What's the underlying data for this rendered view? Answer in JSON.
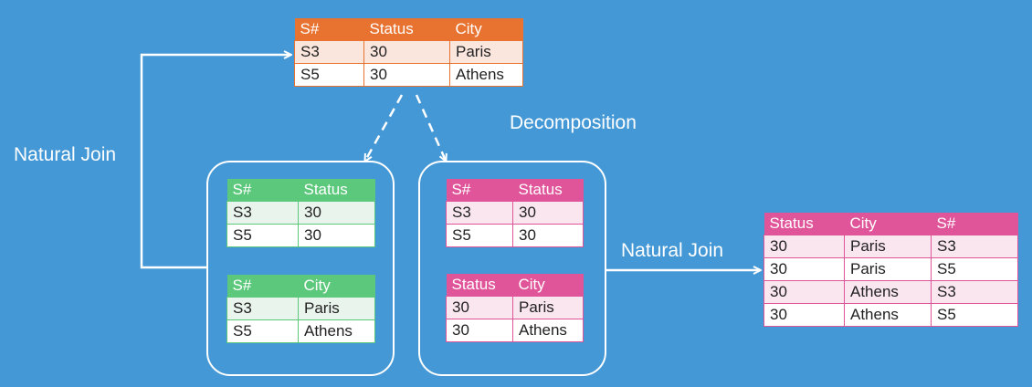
{
  "colors": {
    "background": "#4498d6",
    "orange_header": "#e8722f",
    "orange_row_alt": "#fbe6de",
    "green_header": "#5cc87c",
    "green_row_alt": "#e9f4ec",
    "pink_header": "#e0559a",
    "pink_row_alt": "#fae6ee",
    "white": "#ffffff"
  },
  "labels": {
    "natural_join_left": "Natural Join",
    "natural_join_right": "Natural Join",
    "decomposition": "Decomposition"
  },
  "original": {
    "headers": [
      "S#",
      "Status",
      "City"
    ],
    "rows": [
      [
        "S3",
        "30",
        "Paris"
      ],
      [
        "S5",
        "30",
        "Athens"
      ]
    ]
  },
  "green_top": {
    "headers": [
      "S#",
      "Status"
    ],
    "rows": [
      [
        "S3",
        "30"
      ],
      [
        "S5",
        "30"
      ]
    ]
  },
  "green_bottom": {
    "headers": [
      "S#",
      "City"
    ],
    "rows": [
      [
        "S3",
        "Paris"
      ],
      [
        "S5",
        "Athens"
      ]
    ]
  },
  "pink_top": {
    "headers": [
      "S#",
      "Status"
    ],
    "rows": [
      [
        "S3",
        "30"
      ],
      [
        "S5",
        "30"
      ]
    ]
  },
  "pink_bottom": {
    "headers": [
      "Status",
      "City"
    ],
    "rows": [
      [
        "30",
        "Paris"
      ],
      [
        "30",
        "Athens"
      ]
    ]
  },
  "result": {
    "headers": [
      "Status",
      "City",
      "S#"
    ],
    "rows": [
      [
        "30",
        "Paris",
        "S3"
      ],
      [
        "30",
        "Paris",
        "S5"
      ],
      [
        "30",
        "Athens",
        "S3"
      ],
      [
        "30",
        "Athens",
        "S5"
      ]
    ]
  }
}
